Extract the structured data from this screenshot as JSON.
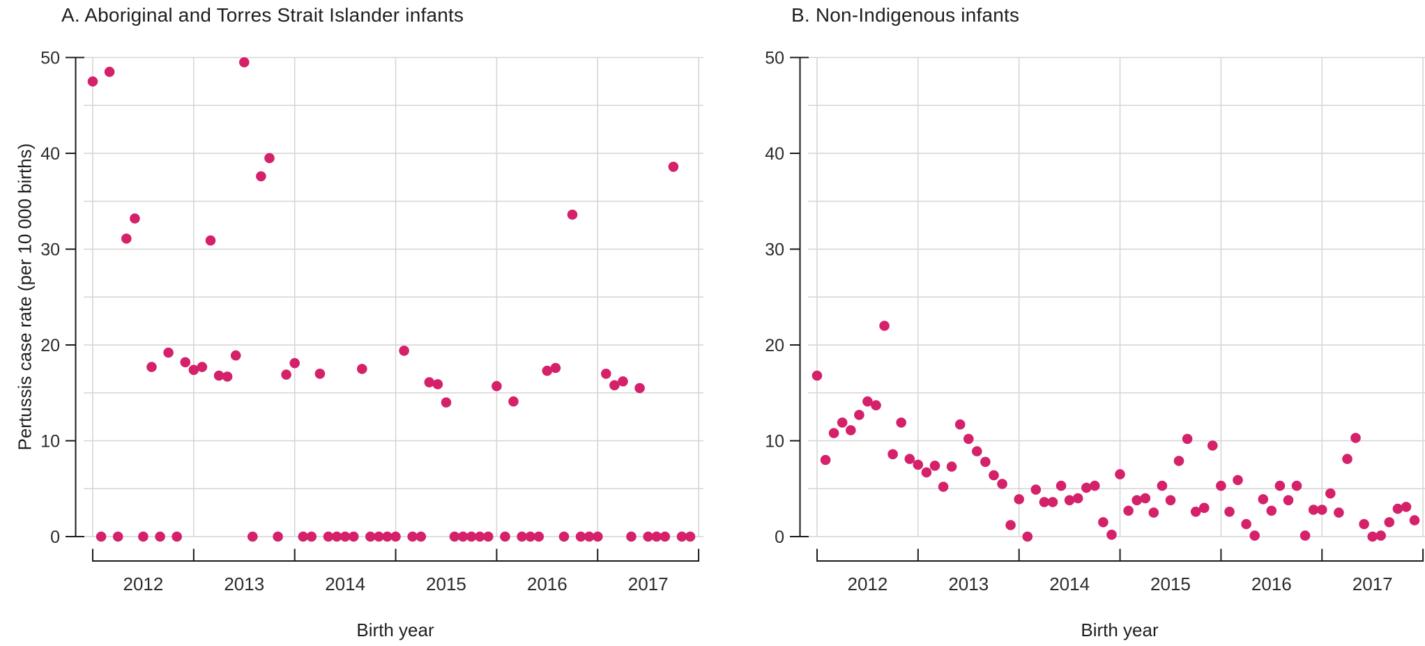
{
  "figure": {
    "panel_a_title": "A. Aboriginal and Torres Strait Islander infants",
    "panel_b_title": "B. Non-Indigenous infants",
    "y_axis_title": "Pertussis case rate (per 10 000 births)",
    "x_axis_title": "Birth year"
  },
  "chart_data": [
    {
      "type": "scatter",
      "panel": "A",
      "title": "A. Aboriginal and Torres Strait Islander infants",
      "xlabel": "Birth year",
      "ylabel": "Pertussis case rate (per 10 000 births)",
      "x_years": [
        2012,
        2013,
        2014,
        2015,
        2016,
        2017
      ],
      "x_unit": "month (Jan 2012 - Dec 2017)",
      "ylim": [
        0,
        50
      ],
      "yticks": [
        0,
        10,
        20,
        30,
        40,
        50
      ],
      "gridline_step": 5,
      "legend": "none",
      "grid": "on",
      "point_color": "#d4216a",
      "values": [
        47.5,
        0,
        48.5,
        0,
        31.1,
        33.2,
        0,
        17.7,
        0,
        19.2,
        0,
        18.2,
        17.4,
        17.7,
        30.9,
        16.8,
        16.7,
        18.9,
        49.5,
        0,
        37.6,
        39.5,
        0,
        16.9,
        18.1,
        0,
        0,
        17.0,
        0,
        0,
        0,
        0,
        17.5,
        0,
        0,
        0,
        0,
        19.4,
        0,
        0,
        16.1,
        15.9,
        14.0,
        0,
        0,
        0,
        0,
        0,
        15.7,
        0,
        14.1,
        0,
        0,
        0,
        17.3,
        17.6,
        0,
        33.6,
        0,
        0,
        0,
        17.0,
        15.8,
        16.2,
        0,
        15.5,
        0,
        0,
        0,
        38.6,
        0,
        0
      ]
    },
    {
      "type": "scatter",
      "panel": "B",
      "title": "B. Non-Indigenous infants",
      "xlabel": "Birth year",
      "ylabel": null,
      "x_years": [
        2012,
        2013,
        2014,
        2015,
        2016,
        2017
      ],
      "x_unit": "month (Jan 2012 - Dec 2017)",
      "ylim": [
        0,
        50
      ],
      "yticks": [
        0,
        10,
        20,
        30,
        40,
        50
      ],
      "gridline_step": 5,
      "legend": "none",
      "grid": "on",
      "point_color": "#d4216a",
      "values": [
        16.8,
        8.0,
        10.8,
        11.9,
        11.1,
        12.7,
        14.1,
        13.7,
        22.0,
        8.6,
        11.9,
        8.1,
        7.5,
        6.7,
        7.4,
        5.2,
        7.3,
        11.7,
        10.2,
        8.9,
        7.8,
        6.4,
        5.5,
        1.2,
        3.9,
        0.0,
        4.9,
        3.6,
        3.6,
        5.3,
        3.8,
        4.0,
        5.1,
        5.3,
        1.5,
        0.2,
        6.5,
        2.7,
        3.8,
        4.0,
        2.5,
        5.3,
        3.8,
        7.9,
        10.2,
        2.6,
        3.0,
        9.5,
        5.3,
        2.6,
        5.9,
        1.3,
        0.1,
        3.9,
        2.7,
        5.3,
        3.8,
        5.3,
        0.1,
        2.8,
        2.8,
        4.5,
        2.5,
        8.1,
        10.3,
        1.3,
        0.0,
        0.1,
        1.5,
        2.9,
        3.1,
        1.7
      ]
    }
  ]
}
